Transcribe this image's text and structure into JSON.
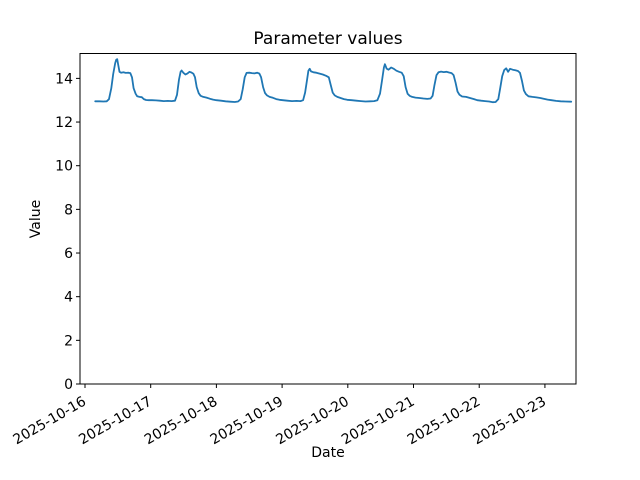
{
  "chart_data": {
    "type": "line",
    "title": "Parameter values",
    "xlabel": "Date",
    "ylabel": "Value",
    "grid": false,
    "legend": "none",
    "line_color": "#1f77b4",
    "axis_color": "#000000",
    "background_color": "#ffffff",
    "x_unit": "days since first x tick (2025-10-16 00:00)",
    "x_tick_labels": [
      "2025-10-16",
      "2025-10-17",
      "2025-10-18",
      "2025-10-19",
      "2025-10-20",
      "2025-10-21",
      "2025-10-22",
      "2025-10-23"
    ],
    "x_tick_positions": [
      0,
      1,
      2,
      3,
      4,
      5,
      6,
      7
    ],
    "x_tick_rotation_deg": 30,
    "y_ticks": [
      0,
      2,
      4,
      6,
      8,
      10,
      12,
      14
    ],
    "xlim": [
      -0.076,
      7.473
    ],
    "ylim": [
      0,
      15.14
    ],
    "series": [
      {
        "points": [
          [
            0.155,
            12.95
          ],
          [
            0.22,
            12.95
          ],
          [
            0.28,
            12.94
          ],
          [
            0.33,
            12.95
          ],
          [
            0.365,
            13.05
          ],
          [
            0.4,
            13.55
          ],
          [
            0.43,
            14.2
          ],
          [
            0.46,
            14.7
          ],
          [
            0.475,
            14.85
          ],
          [
            0.49,
            14.88
          ],
          [
            0.51,
            14.55
          ],
          [
            0.525,
            14.3
          ],
          [
            0.55,
            14.26
          ],
          [
            0.585,
            14.28
          ],
          [
            0.62,
            14.25
          ],
          [
            0.66,
            14.26
          ],
          [
            0.69,
            14.24
          ],
          [
            0.715,
            14.05
          ],
          [
            0.74,
            13.55
          ],
          [
            0.77,
            13.3
          ],
          [
            0.795,
            13.18
          ],
          [
            0.83,
            13.15
          ],
          [
            0.865,
            13.14
          ],
          [
            0.895,
            13.05
          ],
          [
            0.93,
            13.01
          ],
          [
            0.97,
            13.0
          ],
          [
            1.02,
            13.0
          ],
          [
            1.08,
            12.99
          ],
          [
            1.14,
            12.98
          ],
          [
            1.2,
            12.96
          ],
          [
            1.26,
            12.97
          ],
          [
            1.32,
            12.96
          ],
          [
            1.37,
            12.98
          ],
          [
            1.4,
            13.25
          ],
          [
            1.43,
            13.95
          ],
          [
            1.455,
            14.3
          ],
          [
            1.47,
            14.36
          ],
          [
            1.5,
            14.25
          ],
          [
            1.53,
            14.18
          ],
          [
            1.56,
            14.23
          ],
          [
            1.59,
            14.3
          ],
          [
            1.62,
            14.27
          ],
          [
            1.65,
            14.21
          ],
          [
            1.675,
            14.05
          ],
          [
            1.7,
            13.6
          ],
          [
            1.73,
            13.32
          ],
          [
            1.76,
            13.2
          ],
          [
            1.8,
            13.15
          ],
          [
            1.85,
            13.12
          ],
          [
            1.9,
            13.07
          ],
          [
            1.95,
            13.03
          ],
          [
            2.0,
            13.0
          ],
          [
            2.07,
            12.98
          ],
          [
            2.14,
            12.95
          ],
          [
            2.21,
            12.93
          ],
          [
            2.28,
            12.92
          ],
          [
            2.33,
            12.94
          ],
          [
            2.37,
            13.05
          ],
          [
            2.4,
            13.5
          ],
          [
            2.43,
            14.05
          ],
          [
            2.46,
            14.25
          ],
          [
            2.5,
            14.26
          ],
          [
            2.54,
            14.24
          ],
          [
            2.58,
            14.23
          ],
          [
            2.62,
            14.26
          ],
          [
            2.655,
            14.22
          ],
          [
            2.68,
            14.05
          ],
          [
            2.71,
            13.6
          ],
          [
            2.74,
            13.33
          ],
          [
            2.77,
            13.22
          ],
          [
            2.81,
            13.15
          ],
          [
            2.86,
            13.11
          ],
          [
            2.91,
            13.05
          ],
          [
            2.96,
            13.02
          ],
          [
            3.01,
            13.0
          ],
          [
            3.08,
            12.98
          ],
          [
            3.15,
            12.96
          ],
          [
            3.22,
            12.97
          ],
          [
            3.28,
            12.96
          ],
          [
            3.32,
            13.0
          ],
          [
            3.35,
            13.35
          ],
          [
            3.38,
            13.95
          ],
          [
            3.4,
            14.35
          ],
          [
            3.42,
            14.44
          ],
          [
            3.44,
            14.32
          ],
          [
            3.48,
            14.28
          ],
          [
            3.52,
            14.26
          ],
          [
            3.57,
            14.22
          ],
          [
            3.62,
            14.18
          ],
          [
            3.67,
            14.12
          ],
          [
            3.71,
            14.05
          ],
          [
            3.74,
            13.7
          ],
          [
            3.77,
            13.35
          ],
          [
            3.8,
            13.22
          ],
          [
            3.84,
            13.15
          ],
          [
            3.89,
            13.1
          ],
          [
            3.94,
            13.05
          ],
          [
            3.99,
            13.02
          ],
          [
            4.06,
            13.0
          ],
          [
            4.13,
            12.98
          ],
          [
            4.2,
            12.96
          ],
          [
            4.27,
            12.94
          ],
          [
            4.34,
            12.95
          ],
          [
            4.4,
            12.96
          ],
          [
            4.45,
            13.0
          ],
          [
            4.49,
            13.3
          ],
          [
            4.52,
            13.9
          ],
          [
            4.55,
            14.5
          ],
          [
            4.565,
            14.65
          ],
          [
            4.59,
            14.45
          ],
          [
            4.62,
            14.4
          ],
          [
            4.66,
            14.5
          ],
          [
            4.7,
            14.44
          ],
          [
            4.74,
            14.35
          ],
          [
            4.78,
            14.3
          ],
          [
            4.82,
            14.26
          ],
          [
            4.85,
            14.1
          ],
          [
            4.88,
            13.6
          ],
          [
            4.91,
            13.3
          ],
          [
            4.94,
            13.2
          ],
          [
            4.98,
            13.15
          ],
          [
            5.03,
            13.12
          ],
          [
            5.09,
            13.1
          ],
          [
            5.15,
            13.08
          ],
          [
            5.21,
            13.06
          ],
          [
            5.26,
            13.08
          ],
          [
            5.29,
            13.2
          ],
          [
            5.32,
            13.7
          ],
          [
            5.35,
            14.15
          ],
          [
            5.38,
            14.28
          ],
          [
            5.42,
            14.31
          ],
          [
            5.46,
            14.29
          ],
          [
            5.5,
            14.3
          ],
          [
            5.54,
            14.27
          ],
          [
            5.58,
            14.24
          ],
          [
            5.61,
            14.15
          ],
          [
            5.64,
            13.8
          ],
          [
            5.67,
            13.4
          ],
          [
            5.7,
            13.25
          ],
          [
            5.74,
            13.17
          ],
          [
            5.8,
            13.15
          ],
          [
            5.86,
            13.1
          ],
          [
            5.92,
            13.05
          ],
          [
            5.97,
            13.0
          ],
          [
            6.03,
            12.98
          ],
          [
            6.09,
            12.96
          ],
          [
            6.15,
            12.94
          ],
          [
            6.21,
            12.91
          ],
          [
            6.25,
            12.92
          ],
          [
            6.29,
            13.05
          ],
          [
            6.32,
            13.55
          ],
          [
            6.35,
            14.1
          ],
          [
            6.38,
            14.38
          ],
          [
            6.41,
            14.46
          ],
          [
            6.44,
            14.3
          ],
          [
            6.47,
            14.44
          ],
          [
            6.51,
            14.4
          ],
          [
            6.55,
            14.37
          ],
          [
            6.59,
            14.34
          ],
          [
            6.62,
            14.25
          ],
          [
            6.65,
            13.9
          ],
          [
            6.68,
            13.45
          ],
          [
            6.71,
            13.28
          ],
          [
            6.75,
            13.18
          ],
          [
            6.81,
            13.15
          ],
          [
            6.87,
            13.13
          ],
          [
            6.93,
            13.1
          ],
          [
            6.98,
            13.07
          ],
          [
            7.04,
            13.03
          ],
          [
            7.1,
            13.0
          ],
          [
            7.17,
            12.97
          ],
          [
            7.24,
            12.95
          ],
          [
            7.31,
            12.94
          ],
          [
            7.4,
            12.93
          ]
        ]
      }
    ]
  }
}
